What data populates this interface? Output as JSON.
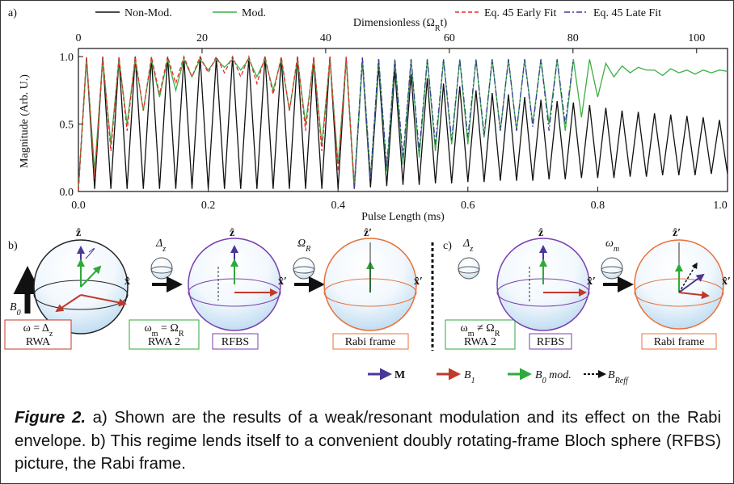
{
  "chart_data": {
    "type": "line",
    "panel_label": "a)",
    "x_label": "Pulse Length (ms)",
    "y_label": "Magnitude (Arb. U.)",
    "x2_label": [
      "Dimensionless (Ω",
      "R",
      "t)"
    ],
    "x": [
      0,
      0.0125,
      0.025,
      0.0375,
      0.05,
      0.0625,
      0.075,
      0.0875,
      0.1,
      0.1125,
      0.125,
      0.1375,
      0.15,
      0.1625,
      0.175,
      0.1875,
      0.2,
      0.2125,
      0.225,
      0.2375,
      0.25,
      0.2625,
      0.275,
      0.2875,
      0.3,
      0.3125,
      0.325,
      0.3375,
      0.35,
      0.3625,
      0.375,
      0.3875,
      0.4,
      0.4125,
      0.425,
      0.4375,
      0.45,
      0.4625,
      0.475,
      0.4875,
      0.5,
      0.5125,
      0.525,
      0.5375,
      0.55,
      0.5625,
      0.575,
      0.5875,
      0.6,
      0.6125,
      0.625,
      0.6375,
      0.65,
      0.6625,
      0.675,
      0.6875,
      0.7,
      0.7125,
      0.725,
      0.7375,
      0.75,
      0.7625,
      0.775,
      0.7875,
      0.8,
      0.8125,
      0.825,
      0.8375,
      0.85,
      0.8625,
      0.875,
      0.8875,
      0.9,
      0.9125,
      0.925,
      0.9375,
      0.95,
      0.9625,
      0.975,
      0.9875,
      1.0
    ],
    "series": [
      {
        "name": "Non-Mod.",
        "color": "#111111",
        "dash": "solid",
        "values": [
          0.02,
          0.99,
          0.02,
          1.0,
          0.02,
          0.99,
          0.02,
          1.0,
          0.02,
          0.99,
          0.02,
          1.0,
          0.02,
          0.99,
          0.02,
          1.0,
          0.02,
          0.99,
          0.02,
          1.0,
          0.02,
          0.99,
          0.02,
          1.0,
          0.02,
          0.99,
          0.02,
          1.0,
          0.02,
          0.99,
          0.02,
          1.0,
          0.02,
          0.99,
          0.02,
          0.97,
          0.03,
          0.93,
          0.04,
          0.9,
          0.05,
          0.87,
          0.05,
          0.84,
          0.06,
          0.8,
          0.06,
          0.78,
          0.07,
          0.75,
          0.07,
          0.73,
          0.08,
          0.72,
          0.08,
          0.7,
          0.08,
          0.68,
          0.09,
          0.67,
          0.09,
          0.66,
          0.1,
          0.64,
          0.1,
          0.62,
          0.1,
          0.6,
          0.11,
          0.59,
          0.11,
          0.58,
          0.12,
          0.57,
          0.12,
          0.56,
          0.12,
          0.55,
          0.13,
          0.53,
          0.13
        ]
      },
      {
        "name": "Mod.",
        "color": "#3cb043",
        "dash": "solid",
        "values": [
          0.02,
          0.98,
          0.15,
          0.98,
          0.35,
          0.98,
          0.5,
          0.98,
          0.6,
          0.98,
          0.7,
          0.98,
          0.75,
          0.98,
          0.85,
          0.98,
          0.9,
          0.98,
          0.92,
          0.98,
          0.9,
          0.98,
          0.85,
          0.98,
          0.75,
          0.98,
          0.6,
          0.98,
          0.5,
          0.98,
          0.35,
          0.98,
          0.2,
          0.98,
          0.05,
          0.98,
          0.1,
          0.98,
          0.15,
          0.98,
          0.2,
          0.98,
          0.25,
          0.98,
          0.3,
          0.98,
          0.35,
          0.98,
          0.35,
          0.98,
          0.4,
          0.98,
          0.45,
          0.98,
          0.45,
          0.98,
          0.5,
          0.98,
          0.5,
          0.98,
          0.45,
          0.98,
          0.55,
          0.98,
          0.7,
          0.95,
          0.85,
          0.93,
          0.88,
          0.92,
          0.9,
          0.9,
          0.86,
          0.91,
          0.88,
          0.9,
          0.87,
          0.9,
          0.88,
          0.9,
          0.89
        ]
      },
      {
        "name": "Eq. 45 Early Fit",
        "color": "#e03030",
        "dash": "dashed",
        "values": [
          0.01,
          1.0,
          0.1,
          1.0,
          0.3,
          1.0,
          0.45,
          1.0,
          0.6,
          1.0,
          0.72,
          1.0,
          0.8,
          1.0,
          0.85,
          1.0,
          0.88,
          1.0,
          0.88,
          1.0,
          0.85,
          1.0,
          0.8,
          1.0,
          0.72,
          1.0,
          0.6,
          1.0,
          0.45,
          1.0,
          0.3,
          1.0,
          0.15,
          1.0,
          0.02,
          null,
          null,
          null,
          null,
          null,
          null,
          null,
          null,
          null,
          null,
          null,
          null,
          null,
          null,
          null,
          null,
          null,
          null,
          null,
          null,
          null,
          null,
          null,
          null,
          null,
          null,
          null,
          null,
          null,
          null,
          null,
          null,
          null,
          null,
          null,
          null,
          null,
          null,
          null,
          null,
          null,
          null,
          null,
          null,
          null,
          null
        ]
      },
      {
        "name": "Eq. 45 Late Fit",
        "color": "#3a3aa0",
        "dash": "dashdot",
        "values": [
          null,
          null,
          null,
          null,
          null,
          null,
          null,
          null,
          null,
          null,
          null,
          null,
          null,
          null,
          null,
          null,
          null,
          null,
          null,
          null,
          null,
          null,
          null,
          null,
          null,
          null,
          null,
          null,
          null,
          null,
          null,
          null,
          null,
          null,
          0.02,
          1.0,
          0.1,
          0.99,
          0.18,
          0.98,
          0.25,
          0.98,
          0.3,
          0.98,
          0.35,
          0.98,
          0.38,
          0.98,
          0.4,
          0.98,
          0.42,
          0.98,
          0.45,
          0.98,
          0.45,
          0.98,
          0.48,
          0.98,
          0.45,
          0.98,
          0.5,
          0.98,
          null,
          null,
          null,
          null,
          null,
          null,
          null,
          null,
          null,
          null,
          null,
          null,
          null,
          null,
          null,
          null,
          null,
          null,
          null
        ]
      }
    ],
    "xlim": [
      0,
      1.0
    ],
    "xticks": [
      {
        "value": 0,
        "label": "0.0"
      },
      {
        "value": 0.2,
        "label": "0.2"
      },
      {
        "value": 0.4,
        "label": "0.4"
      },
      {
        "value": 0.6,
        "label": "0.6"
      },
      {
        "value": 0.8,
        "label": "0.8"
      },
      {
        "value": 1.0,
        "label": "1.0"
      }
    ],
    "ylim": [
      0,
      1.06
    ],
    "yticks": [
      {
        "value": 0,
        "label": "0.0"
      },
      {
        "value": 0.5,
        "label": "0.5"
      },
      {
        "value": 1.0,
        "label": "1.0"
      }
    ],
    "x2lim": [
      0,
      105
    ],
    "x2ticks": [
      0,
      20,
      40,
      60,
      80,
      100
    ],
    "grid": false
  },
  "diagram": {
    "panel_b": "b)",
    "panel_c": "c)",
    "axis_z": "ẑ",
    "axis_x": "x̂",
    "axis_z_prime": "ẑ′",
    "axis_x_prime": "x̂′",
    "b0": [
      "B",
      "0"
    ],
    "delta_z": [
      "Δ",
      "z"
    ],
    "omega_r": [
      "Ω",
      "R"
    ],
    "omega_m": [
      "ω",
      "m"
    ],
    "box_rwa": [
      [
        "ω = Δ",
        "z"
      ],
      [
        "RWA"
      ]
    ],
    "box_rwa2_b": [
      [
        "ω",
        "m",
        " = Ω",
        "R"
      ],
      [
        "RWA 2"
      ]
    ],
    "box_rwa2_c": [
      [
        "ω",
        "m",
        " ≠ Ω",
        "R"
      ],
      [
        "RWA 2"
      ]
    ],
    "rfbs": "RFBS",
    "rabi_frame": "Rabi frame",
    "legend": [
      [
        "M"
      ],
      [
        "B",
        "1"
      ],
      [
        "B",
        "0",
        " mod."
      ],
      [
        "B",
        "Reff"
      ]
    ]
  },
  "caption": {
    "label": "Figure 2.",
    "text": " a) Shown are the results of a weak/resonant modulation and its effect on the Rabi envelope. b) This regime lends itself to a convenient doubly rotating-frame Bloch sphere (RFBS) picture, the Rabi frame."
  }
}
